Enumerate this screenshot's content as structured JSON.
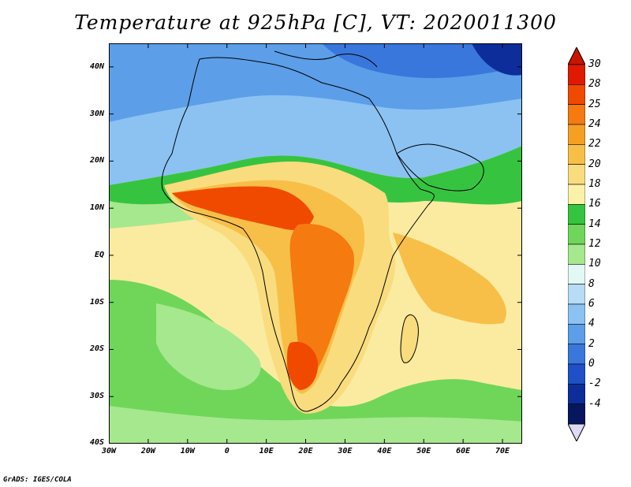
{
  "title": "Temperature at 925hPa [C], VT: 2020011300",
  "credit": "GrADS: IGES/COLA",
  "map": {
    "projection": "lat-lon",
    "lon_range": [
      -30,
      75
    ],
    "lat_range": [
      -40,
      45
    ],
    "lat_ticks": [
      {
        "value": 40,
        "label": "40N"
      },
      {
        "value": 30,
        "label": "30N"
      },
      {
        "value": 20,
        "label": "20N"
      },
      {
        "value": 10,
        "label": "10N"
      },
      {
        "value": 0,
        "label": "EQ"
      },
      {
        "value": -10,
        "label": "10S"
      },
      {
        "value": -20,
        "label": "20S"
      },
      {
        "value": -30,
        "label": "30S"
      },
      {
        "value": -40,
        "label": "40S"
      }
    ],
    "lon_ticks": [
      {
        "value": -30,
        "label": "30W"
      },
      {
        "value": -20,
        "label": "20W"
      },
      {
        "value": -10,
        "label": "10W"
      },
      {
        "value": 0,
        "label": "0"
      },
      {
        "value": 10,
        "label": "10E"
      },
      {
        "value": 20,
        "label": "20E"
      },
      {
        "value": 30,
        "label": "30E"
      },
      {
        "value": 40,
        "label": "40E"
      },
      {
        "value": 50,
        "label": "50E"
      },
      {
        "value": 60,
        "label": "60E"
      },
      {
        "value": 70,
        "label": "70E"
      }
    ]
  },
  "colorbar": {
    "unit": "C",
    "labels": [
      "30",
      "28",
      "25",
      "24",
      "22",
      "20",
      "18",
      "16",
      "14",
      "12",
      "10",
      "8",
      "6",
      "4",
      "2",
      "0",
      "-2",
      "-4"
    ],
    "colors": [
      "#e01a00",
      "#f04a00",
      "#f57a10",
      "#f5a023",
      "#f8bf48",
      "#f9dc7e",
      "#fbf1a8",
      "#36c440",
      "#6fd65a",
      "#a6e88e",
      "#e2f8f4",
      "#b6dcf6",
      "#8bc2f2",
      "#5c9ee8",
      "#3a77dc",
      "#1f50c8",
      "#0d2d9a",
      "#06175f"
    ],
    "max_arrow_color": "#c81400",
    "min_arrow_color": "#dcdaf7"
  }
}
